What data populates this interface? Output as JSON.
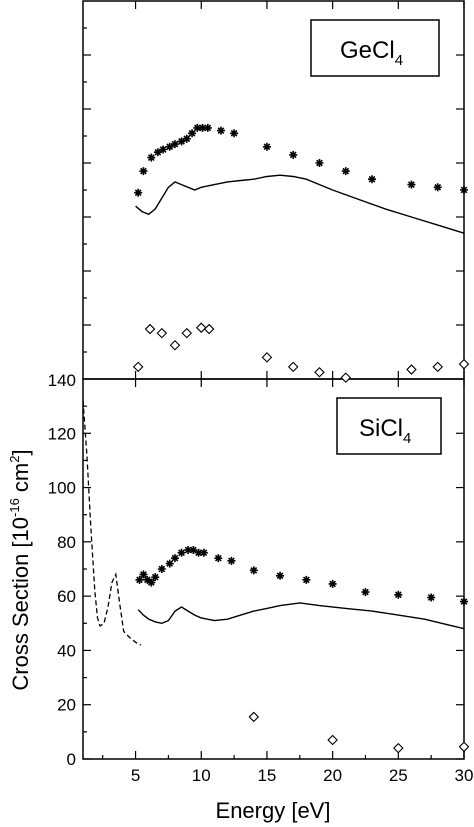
{
  "chart_data": [
    {
      "type": "scatter",
      "panel": "top",
      "title": "GeCl",
      "title_subscript": "4",
      "xlim": [
        1,
        30
      ],
      "ylim": [
        0,
        140
      ],
      "y_tick_labels_shown": [
        "140"
      ],
      "series": [
        {
          "style": "asterisk",
          "x": [
            5.2,
            5.6,
            6.2,
            6.7,
            7.1,
            7.6,
            8.0,
            8.5,
            8.9,
            9.3,
            9.7,
            10.1,
            10.5,
            11.5,
            12.5,
            15.0,
            17.0,
            19.0,
            21.0,
            23.0,
            26.0,
            28.0,
            30.0
          ],
          "y": [
            69,
            77,
            82,
            84,
            85,
            86,
            87,
            88,
            89,
            91,
            93,
            93,
            93,
            92,
            91,
            86,
            83,
            80,
            77,
            74,
            72,
            71,
            70
          ]
        },
        {
          "style": "solid-line",
          "x": [
            5.0,
            5.5,
            6.0,
            6.5,
            7.0,
            7.5,
            8.0,
            8.5,
            9.0,
            9.5,
            10.0,
            11.0,
            12.0,
            13.0,
            14.0,
            15.0,
            16.0,
            17.0,
            18.0,
            19.0,
            20.0,
            22.0,
            24.0,
            26.0,
            28.0,
            30.0
          ],
          "y": [
            64,
            62,
            61,
            63,
            67,
            71,
            73,
            72,
            71,
            70,
            71,
            72,
            73,
            73.5,
            74,
            75,
            75.5,
            75,
            74,
            72,
            70,
            66.5,
            63,
            60,
            57,
            54
          ]
        },
        {
          "style": "diamond",
          "x": [
            5.2,
            6.1,
            7.0,
            8.0,
            8.9,
            10.0,
            10.6,
            15.0,
            17.0,
            19.0,
            21.0,
            26.0,
            28.0,
            30.0
          ],
          "y": [
            4.5,
            18.5,
            17,
            12.5,
            17,
            19,
            18.5,
            8,
            4.5,
            2.5,
            0.5,
            3.5,
            4.5,
            5.5
          ]
        }
      ]
    },
    {
      "type": "scatter",
      "panel": "bottom",
      "title": "SiCl",
      "title_subscript": "4",
      "xlabel": "Energy [eV]",
      "ylabel": "Cross Section [10",
      "ylabel_exponent": "-16",
      "ylabel_unit": " cm",
      "ylabel_unit_exponent": "2",
      "ylabel_close": "]",
      "xlim": [
        1,
        30
      ],
      "ylim": [
        0,
        140
      ],
      "x_ticks": [
        5,
        10,
        15,
        20,
        25,
        30
      ],
      "y_ticks": [
        0,
        20,
        40,
        60,
        80,
        100,
        120
      ],
      "series": [
        {
          "style": "asterisk",
          "x": [
            5.3,
            5.6,
            5.9,
            6.2,
            6.5,
            7.0,
            7.6,
            8.0,
            8.5,
            9.0,
            9.4,
            9.8,
            10.2,
            11.3,
            12.3,
            14.0,
            16.0,
            18.0,
            20.0,
            22.5,
            25.0,
            27.5,
            30.0
          ],
          "y": [
            66,
            68,
            66,
            65,
            67,
            70,
            72,
            74,
            76,
            77,
            77,
            76,
            76,
            74,
            73,
            69.5,
            67.5,
            66,
            64.5,
            61.5,
            60.5,
            59.5,
            58
          ]
        },
        {
          "style": "solid-line",
          "x": [
            5.2,
            5.6,
            6.0,
            6.5,
            7.0,
            7.5,
            8.0,
            8.5,
            9.0,
            9.5,
            10.0,
            11.0,
            12.0,
            13.0,
            14.0,
            15.0,
            16.0,
            17.5,
            19.0,
            21.0,
            23.0,
            25.0,
            27.0,
            30.0
          ],
          "y": [
            55,
            53,
            51.5,
            50.5,
            50,
            51,
            54.5,
            56,
            54.5,
            53,
            52,
            51,
            51.5,
            53,
            54.5,
            55.5,
            56.5,
            57.5,
            56.5,
            55.5,
            54.5,
            53,
            51.5,
            48
          ]
        },
        {
          "style": "dashed-line",
          "x": [
            1.0,
            1.3,
            1.6,
            1.9,
            2.1,
            2.3,
            2.6,
            2.9,
            3.2,
            3.5,
            3.8,
            4.1,
            4.5,
            5.0,
            5.4
          ],
          "y": [
            132,
            112,
            85,
            62,
            52,
            49,
            50,
            56,
            65,
            68,
            57,
            47,
            45,
            43,
            42
          ]
        },
        {
          "style": "diamond",
          "x": [
            14.0,
            20.0,
            25.0,
            30.0
          ],
          "y": [
            15.5,
            7,
            4,
            4.5
          ]
        }
      ]
    }
  ]
}
